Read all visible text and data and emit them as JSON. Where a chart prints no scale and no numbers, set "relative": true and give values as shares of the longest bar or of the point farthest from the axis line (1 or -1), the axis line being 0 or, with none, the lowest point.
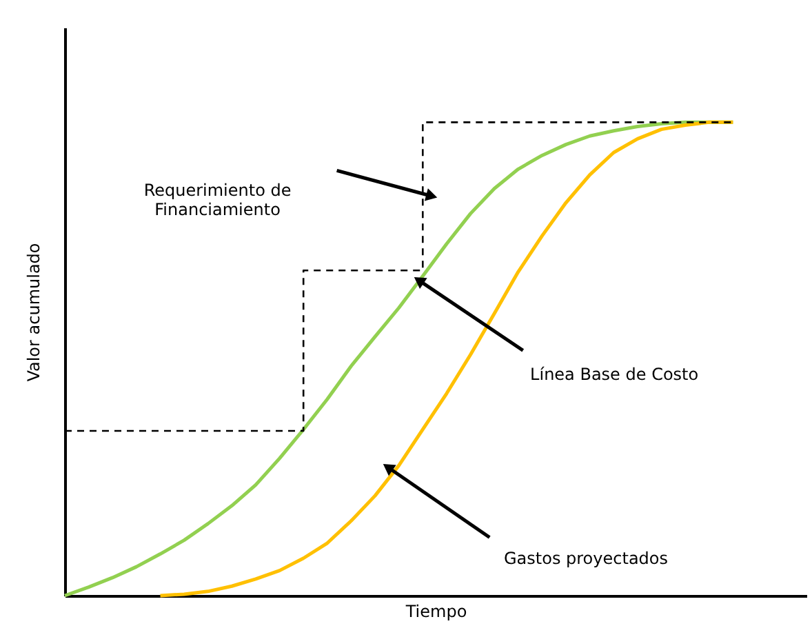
{
  "chart_data": {
    "type": "line",
    "relative": true,
    "xlabel": "Tiempo",
    "ylabel": "Valor acumulado",
    "categories": [
      null,
      null,
      null,
      null,
      null,
      null,
      null,
      null,
      null,
      null,
      null,
      null,
      null,
      null,
      null,
      null,
      null,
      null,
      null,
      null,
      null,
      null,
      null,
      null,
      null,
      null,
      null,
      null,
      null
    ],
    "series": [
      {
        "color": "#92d050",
        "values": [
          0,
          0.018,
          0.038,
          0.061,
          0.088,
          0.117,
          0.152,
          0.19,
          0.234,
          0.29,
          0.351,
          0.415,
          0.485,
          0.547,
          0.608,
          0.675,
          0.743,
          0.807,
          0.86,
          0.901,
          0.93,
          0.953,
          0.971,
          0.982,
          0.991,
          0.997,
          1,
          1,
          1
        ]
      },
      {
        "color": "#ffc000",
        "values": [
          null,
          null,
          null,
          null,
          0,
          0.003,
          0.009,
          0.02,
          0.035,
          0.053,
          0.079,
          0.111,
          0.158,
          0.211,
          0.275,
          0.351,
          0.427,
          0.509,
          0.596,
          0.684,
          0.76,
          0.83,
          0.889,
          0.936,
          0.965,
          0.985,
          0.994,
          1,
          1
        ]
      },
      {
        "type": "step",
        "color": "#000000",
        "line_style": "dashed",
        "values": [
          0.348,
          0.348,
          0.348,
          0.348,
          0.348,
          0.348,
          0.348,
          0.348,
          0.348,
          0.348,
          0.687,
          0.687,
          0.687,
          0.687,
          0.687,
          1,
          1,
          1,
          1,
          1,
          1,
          1,
          1,
          1,
          1,
          1,
          1,
          1,
          1
        ]
      }
    ],
    "annotations": [
      "Requerimiento de\nFinanciamiento",
      "Línea Base de Costo",
      "Gastos proyectados"
    ]
  }
}
